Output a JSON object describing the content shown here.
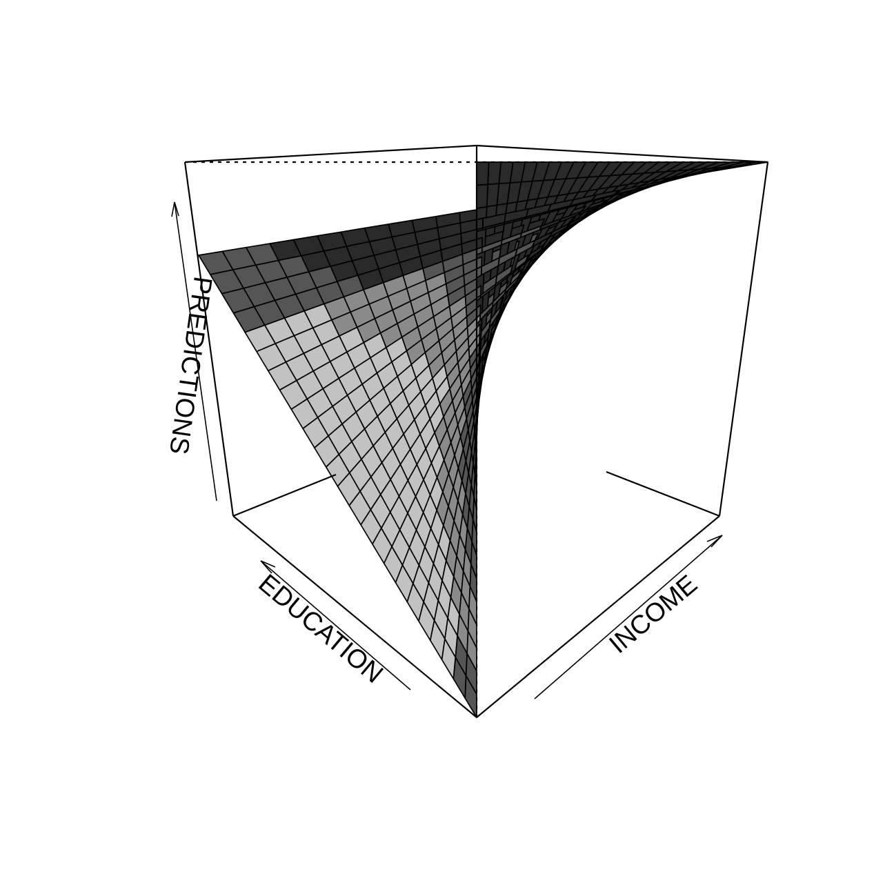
{
  "chart_data": {
    "type": "surface3d",
    "xlabel": "EDUCATION",
    "ylabel": "INCOME",
    "zlabel": "PREDICTIONS",
    "grid_size": [
      24,
      24
    ],
    "shade_levels": [
      "#c2c2c2",
      "#8a8a8a",
      "#555555",
      "#2a2a2a"
    ],
    "axis_ticks_shown": false,
    "box": true
  }
}
